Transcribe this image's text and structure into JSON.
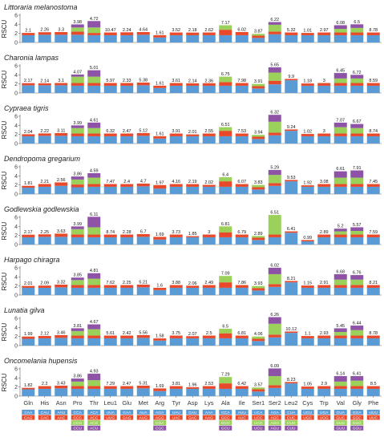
{
  "chart_data": {
    "type": "bar",
    "layout": "stacked bar panels",
    "ylabel": "RSCU",
    "ylim": [
      0,
      6
    ],
    "yticks": [
      0,
      2,
      4,
      6
    ],
    "categories": [
      "Gln",
      "His",
      "Asn",
      "Pro",
      "Thr",
      "Leu1",
      "Glu",
      "Met",
      "Arg",
      "Tyr",
      "Asp",
      "Lys",
      "Ala",
      "Ile",
      "Ser1",
      "Ser2",
      "Leu2",
      "Cys",
      "Trp",
      "Val",
      "Gly",
      "Phe"
    ],
    "segment_colors": [
      "#5b9bd5",
      "#e8492a",
      "#9bd05a",
      "#8e53a6"
    ],
    "panels": [
      {
        "title": "Littoraria melanostoma",
        "totals": [
          "2.1",
          "2.26",
          "3.3",
          "3.98",
          "4.72",
          "10.47",
          "2.24",
          "4.64",
          "1.61",
          "3.52",
          "2.18",
          "2.62",
          "7.17",
          "6.02",
          "3.87",
          "6.22",
          "5.32",
          "1.01",
          "2.97",
          "6.08",
          "6.5",
          "8.78"
        ],
        "stacks": [
          [
            1.6,
            0.5
          ],
          [
            1.7,
            0.56
          ],
          [
            1.7,
            0.6
          ],
          [
            1.7,
            0.7,
            0.9,
            0.68
          ],
          [
            1.6,
            0.5,
            1.2,
            1.42
          ],
          [
            1.6,
            0.6
          ],
          [
            1.6,
            0.64
          ],
          [
            1.7,
            0.6
          ],
          [
            1.1,
            0.51
          ],
          [
            1.6,
            0.6
          ],
          [
            1.6,
            0.58
          ],
          [
            1.6,
            0.6
          ],
          [
            1.6,
            1.2,
            1.0
          ],
          [
            1.6,
            0.7
          ],
          [
            1.0,
            0.5,
            0.4
          ],
          [
            1.8,
            0.6,
            1.5,
            0.6
          ],
          [
            1.6,
            0.6
          ],
          [
            1.6,
            0.5
          ],
          [
            1.6,
            0.6
          ],
          [
            1.6,
            0.6,
            0.8,
            0.8
          ],
          [
            1.6,
            0.6,
            1.0,
            0.8
          ],
          [
            1.6,
            0.6
          ]
        ]
      },
      {
        "title": "Charonia lampas",
        "totals": [
          "2.17",
          "2.14",
          "3.1",
          "4.07",
          "5.01",
          "5.97",
          "2.33",
          "5.38",
          "1.61",
          "3.61",
          "2.14",
          "2.36",
          "6.75",
          "7.98",
          "3.91",
          "5.65",
          "9.9",
          "1.18",
          "3",
          "6.45",
          "6.72",
          "8.59"
        ],
        "stacks": [
          [
            1.7,
            0.47
          ],
          [
            1.7,
            0.44
          ],
          [
            1.7,
            0.5
          ],
          [
            1.6,
            0.6,
            1.4,
            0.47
          ],
          [
            1.6,
            0.6,
            1.4,
            1.41
          ],
          [
            1.6,
            0.6
          ],
          [
            1.6,
            0.6
          ],
          [
            1.7,
            0.6
          ],
          [
            1.1,
            0.51
          ],
          [
            1.6,
            0.6
          ],
          [
            1.6,
            0.54
          ],
          [
            1.6,
            0.56
          ],
          [
            1.6,
            0.8,
            1.2
          ],
          [
            1.6,
            0.6
          ],
          [
            1.0,
            0.5,
            0.5
          ],
          [
            1.9,
            0.8,
            1.8,
            1.15
          ],
          [
            2.8,
            0.3
          ],
          [
            1.6,
            0.5
          ],
          [
            1.6,
            0.6
          ],
          [
            1.6,
            0.6,
            1.0,
            1.2
          ],
          [
            1.6,
            0.6,
            1.0,
            0.8
          ],
          [
            1.6,
            0.6
          ]
        ]
      },
      {
        "title": "Cypraea tigris",
        "totals": [
          "2.04",
          "2.22",
          "3.11",
          "3.99",
          "4.61",
          "6.32",
          "2.47",
          "5.12",
          "1.61",
          "3.91",
          "2.01",
          "2.55",
          "6.51",
          "7.53",
          "3.94",
          "6.32",
          "9.24",
          "1.02",
          "3",
          "7.07",
          "6.67",
          "8.74"
        ],
        "stacks": [
          [
            1.6,
            0.44
          ],
          [
            1.7,
            0.52
          ],
          [
            1.7,
            0.6
          ],
          [
            1.6,
            0.6,
            1.2,
            0.59
          ],
          [
            1.6,
            0.6,
            1.2,
            1.21
          ],
          [
            1.6,
            0.6
          ],
          [
            1.6,
            0.6
          ],
          [
            1.7,
            0.6
          ],
          [
            1.1,
            0.51
          ],
          [
            1.6,
            0.6
          ],
          [
            1.6,
            0.41
          ],
          [
            1.6,
            0.6
          ],
          [
            1.6,
            1.2,
            0.8
          ],
          [
            1.6,
            0.6
          ],
          [
            1.0,
            0.5,
            0.4
          ],
          [
            1.8,
            0.6,
            2.4,
            1.52
          ],
          [
            2.8,
            0.3
          ],
          [
            1.6,
            0.5
          ],
          [
            1.6,
            0.6
          ],
          [
            1.6,
            0.6,
            1.4,
            1.0
          ],
          [
            1.6,
            0.6,
            1.2,
            0.9
          ],
          [
            1.6,
            0.6
          ]
        ]
      },
      {
        "title": "Dendropoma gregarium",
        "totals": [
          "1.81",
          "2.21",
          "2.56",
          "3.86",
          "4.59",
          "7.47",
          "2.4",
          "4.7",
          "1.97",
          "4.16",
          "2.19",
          "2.02",
          "6.4",
          "6.07",
          "3.83",
          "5.29",
          "9.53",
          "1.92",
          "3.08",
          "6.61",
          "7.91",
          "7.45"
        ],
        "stacks": [
          [
            1.4,
            0.41
          ],
          [
            1.6,
            0.61
          ],
          [
            1.8,
            0.76
          ],
          [
            1.5,
            0.6,
            1.1,
            0.66
          ],
          [
            1.6,
            0.6,
            1.4,
            0.99
          ],
          [
            1.6,
            0.6
          ],
          [
            1.6,
            0.6
          ],
          [
            1.7,
            0.6
          ],
          [
            1.2,
            0.77
          ],
          [
            1.6,
            0.6
          ],
          [
            1.6,
            0.59
          ],
          [
            1.6,
            0.42
          ],
          [
            1.6,
            1.2,
            0.9
          ],
          [
            1.6,
            0.6
          ],
          [
            1.0,
            0.5,
            0.5
          ],
          [
            1.8,
            0.6,
            1.8,
            1.09
          ],
          [
            2.8,
            0.3
          ],
          [
            1.6,
            0.32
          ],
          [
            1.6,
            0.6
          ],
          [
            1.6,
            0.6,
            1.4,
            1.4
          ],
          [
            1.6,
            0.6,
            1.4,
            1.6
          ],
          [
            1.6,
            0.6
          ]
        ]
      },
      {
        "title": "Godlewskia godlewskia",
        "totals": [
          "2.17",
          "2.25",
          "3.63",
          "3.99",
          "6.11",
          "8.74",
          "2.28",
          "6.7",
          "1.69",
          "3.73",
          "1.85",
          "3",
          "6.81",
          "6.79",
          "2.89",
          "6.51",
          "6.41",
          "0.99",
          "2.89",
          "5.2",
          "5.57",
          "7.59"
        ],
        "stacks": [
          [
            1.6,
            0.57
          ],
          [
            1.7,
            0.55
          ],
          [
            1.7,
            0.7
          ],
          [
            1.6,
            0.6,
            1.2,
            0.59
          ],
          [
            1.6,
            0.6,
            1.6,
            2.31
          ],
          [
            1.6,
            0.6
          ],
          [
            1.6,
            0.6
          ],
          [
            1.7,
            0.6
          ],
          [
            1.1,
            0.59
          ],
          [
            1.6,
            0.6
          ],
          [
            1.6,
            0.25
          ],
          [
            1.6,
            0.6
          ],
          [
            1.6,
            1.1,
            1.3
          ],
          [
            1.6,
            0.6
          ],
          [
            1.0,
            0.5,
            0.39
          ],
          [
            1.6,
            0.6,
            4.31
          ],
          [
            2.6,
            0.3
          ],
          [
            0.7,
            0.29
          ],
          [
            1.6,
            0.6
          ],
          [
            1.6,
            0.6,
            0.7,
            0.6
          ],
          [
            1.6,
            0.6,
            0.8,
            0.8
          ],
          [
            1.6,
            0.6
          ]
        ]
      },
      {
        "title": "Harpago chiragra",
        "totals": [
          "2.01",
          "2.09",
          "3.32",
          "3.85",
          "4.81",
          "7.62",
          "2.25",
          "5.21",
          "1.6",
          "3.88",
          "2.06",
          "2.49",
          "7.09",
          "7.86",
          "3.93",
          "6.02",
          "8.21",
          "1.15",
          "2.91",
          "6.68",
          "6.76",
          "8.21"
        ],
        "stacks": [
          [
            1.6,
            0.41
          ],
          [
            1.6,
            0.49
          ],
          [
            1.7,
            0.6
          ],
          [
            1.6,
            0.6,
            1.1,
            0.55
          ],
          [
            1.6,
            0.6,
            1.4,
            1.21
          ],
          [
            1.6,
            0.6
          ],
          [
            1.6,
            0.6
          ],
          [
            1.7,
            0.6
          ],
          [
            1.1,
            0.5
          ],
          [
            1.6,
            0.6
          ],
          [
            1.6,
            0.46
          ],
          [
            1.6,
            0.6
          ],
          [
            1.6,
            1.2,
            1.4
          ],
          [
            1.6,
            0.6
          ],
          [
            1.0,
            0.5,
            0.5
          ],
          [
            1.8,
            0.6,
            2.2,
            1.42
          ],
          [
            2.8,
            0.3
          ],
          [
            1.6,
            0.5
          ],
          [
            1.6,
            0.6
          ],
          [
            1.6,
            0.6,
            1.2,
            1.2
          ],
          [
            1.6,
            0.6,
            1.2,
            1.0
          ],
          [
            1.6,
            0.6
          ]
        ]
      },
      {
        "title": "Lunatia gilva",
        "totals": [
          "1.99",
          "2.12",
          "3.46",
          "3.81",
          "4.67",
          "5.61",
          "2.42",
          "5.56",
          "1.58",
          "3.75",
          "2.07",
          "2.5",
          "6.5",
          "6.81",
          "4.06",
          "6.26",
          "10.12",
          "1.1",
          "2.93",
          "5.45",
          "6.44",
          "8.78"
        ],
        "stacks": [
          [
            1.5,
            0.49
          ],
          [
            1.6,
            0.52
          ],
          [
            1.7,
            0.6
          ],
          [
            1.6,
            0.6,
            1.0,
            0.61
          ],
          [
            1.6,
            0.6,
            1.4,
            1.07
          ],
          [
            1.6,
            0.6
          ],
          [
            1.6,
            0.6
          ],
          [
            1.7,
            0.6
          ],
          [
            1.1,
            0.48
          ],
          [
            1.6,
            0.6
          ],
          [
            1.6,
            0.47
          ],
          [
            1.6,
            0.6
          ],
          [
            1.6,
            1.1,
            1.0
          ],
          [
            1.6,
            0.6
          ],
          [
            1.0,
            0.5,
            0.5
          ],
          [
            1.8,
            0.6,
            2.4,
            1.46
          ],
          [
            2.8,
            0.3
          ],
          [
            1.6,
            0.5
          ],
          [
            1.6,
            0.6
          ],
          [
            1.6,
            0.6,
            0.8,
            0.8
          ],
          [
            1.6,
            0.6,
            1.2,
            1.0
          ],
          [
            1.6,
            0.6
          ]
        ]
      },
      {
        "title": "Oncomelania hupensis",
        "totals": [
          "1.82",
          "2.2",
          "3.43",
          "3.86",
          "4.93",
          "7.29",
          "2.47",
          "5.31",
          "1.69",
          "3.81",
          "1.96",
          "2.53",
          "7.29",
          "6.42",
          "3.57",
          "6.09",
          "8.23",
          "1.05",
          "2.9",
          "6.14",
          "6.41",
          "8.5"
        ],
        "stacks": [
          [
            1.5,
            0.32
          ],
          [
            1.6,
            0.6
          ],
          [
            1.7,
            0.6
          ],
          [
            1.6,
            0.6,
            1.0,
            0.66
          ],
          [
            1.6,
            0.6,
            1.3,
            1.43
          ],
          [
            1.6,
            0.6
          ],
          [
            1.6,
            0.6
          ],
          [
            1.7,
            0.6
          ],
          [
            1.1,
            0.59
          ],
          [
            1.6,
            0.6
          ],
          [
            1.6,
            0.36
          ],
          [
            1.6,
            0.6
          ],
          [
            1.6,
            1.2,
            1.4
          ],
          [
            1.6,
            0.6
          ],
          [
            1.0,
            0.5,
            0.4
          ],
          [
            1.8,
            0.6,
            2.0,
            1.69
          ],
          [
            2.8,
            0.3
          ],
          [
            1.6,
            0.5
          ],
          [
            1.6,
            0.6
          ],
          [
            1.6,
            0.6,
            1.0,
            1.2
          ],
          [
            1.6,
            0.6,
            1.2,
            1.0
          ],
          [
            1.6,
            0.6
          ]
        ]
      }
    ],
    "codon_legend": {
      "rows": [
        [
          "CAA",
          "CAU",
          "AAU",
          "CCA",
          "ACA",
          "UUA",
          "GAA",
          "AUA",
          "AGA",
          "UAU",
          "GAU",
          "AAA",
          "GCA",
          "AUU",
          "UCA",
          "AGA",
          "CUA",
          "UGU",
          "UGA",
          "GUA",
          "GGA",
          "UUU"
        ],
        [
          "CAG",
          "CAC",
          "AAC",
          "CCC",
          "ACC",
          "UUG",
          "GAG",
          "AUG",
          "AGG",
          "UAC",
          "GAC",
          "AAG",
          "GCC",
          "AUC",
          "UCC",
          "AGC",
          "CUC",
          "UGC",
          "UGG",
          "GUC",
          "GGC",
          "UUC"
        ],
        [
          "",
          "",
          "",
          "CCG",
          "ACG",
          "",
          "",
          "",
          "CGA",
          "",
          "",
          "",
          "GCG",
          "",
          "UCG",
          "AGG",
          "CUG",
          "",
          "",
          "GUG",
          "GGG",
          ""
        ],
        [
          "",
          "",
          "",
          "CCU",
          "ACU",
          "",
          "",
          "",
          "CGC",
          "",
          "",
          "",
          "GCU",
          "",
          "UCU",
          "AGU",
          "CUU",
          "",
          "",
          "GUU",
          "GGU",
          ""
        ]
      ]
    }
  }
}
